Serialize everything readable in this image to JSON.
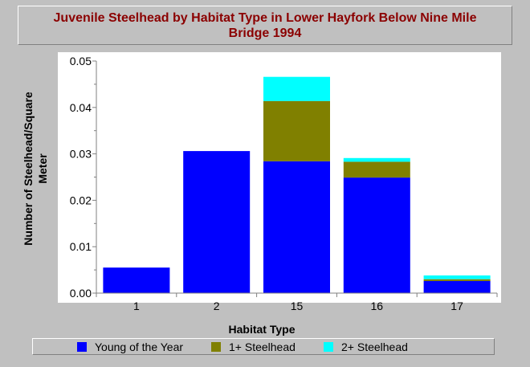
{
  "chart_data": {
    "type": "bar",
    "stacked": true,
    "title": "Juvenile Steelhead by Habitat Type in Lower Hayfork Below Nine Mile Bridge 1994",
    "xlabel": "Habitat Type",
    "ylabel": "Number of Steelhead/Square Meter",
    "categories": [
      "1",
      "2",
      "15",
      "16",
      "17"
    ],
    "series": [
      {
        "name": "Young of the Year",
        "color": "#0000ff",
        "values": [
          0.0055,
          0.0306,
          0.0284,
          0.0249,
          0.0026
        ]
      },
      {
        "name": "1+ Steelhead",
        "color": "#808000",
        "values": [
          0.0,
          0.0,
          0.013,
          0.0034,
          0.0004
        ]
      },
      {
        "name": "2+ Steelhead",
        "color": "#00ffff",
        "values": [
          0.0,
          0.0,
          0.0052,
          0.0008,
          0.0008
        ]
      }
    ],
    "ylim": [
      0,
      0.05
    ],
    "yticks": [
      "0.00",
      "0.01",
      "0.02",
      "0.03",
      "0.04",
      "0.05"
    ],
    "ytick_values": [
      0,
      0.01,
      0.02,
      0.03,
      0.04,
      0.05
    ],
    "grid": false,
    "legend_position": "bottom"
  },
  "colors": {
    "background": "#c0c0c0",
    "plot_area": "#ffffff",
    "title": "#8b0000"
  }
}
